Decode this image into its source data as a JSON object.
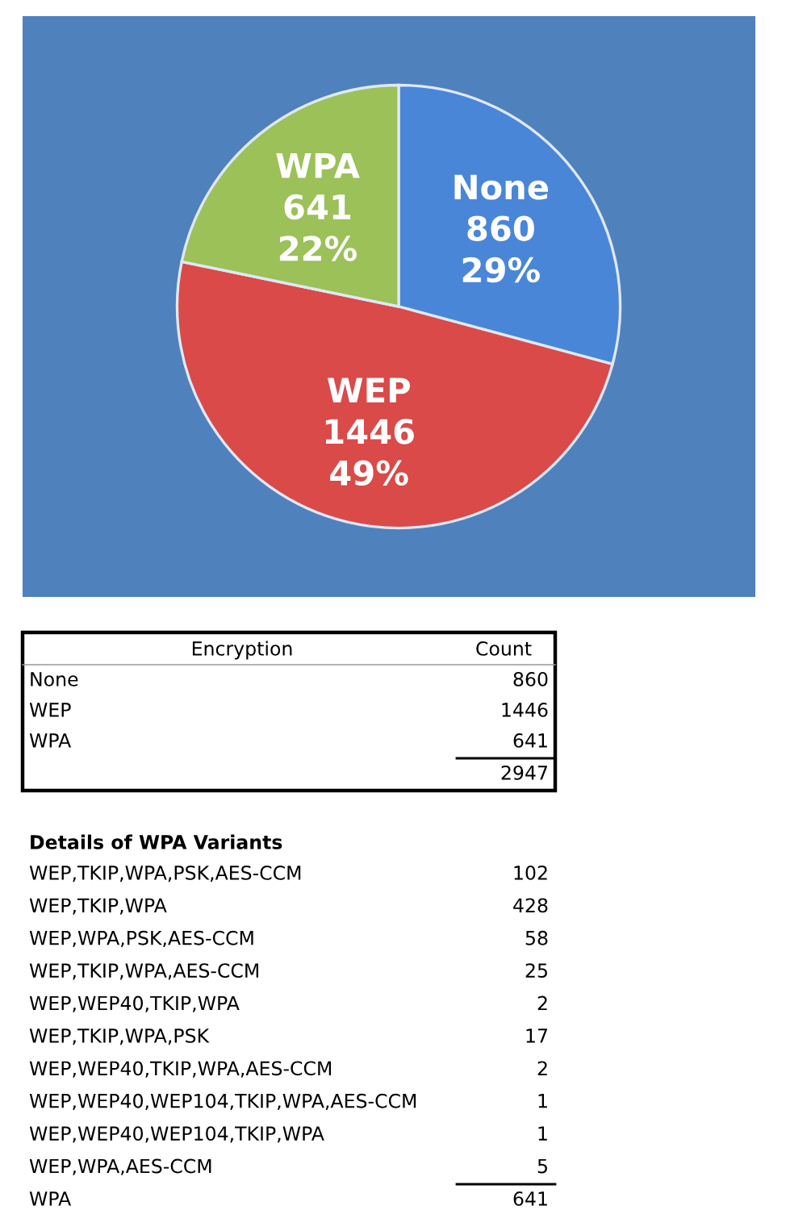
{
  "chart_data": {
    "type": "pie",
    "categories": [
      "None",
      "WEP",
      "WPA"
    ],
    "values": [
      860,
      1446,
      641
    ],
    "colors": [
      "#4a86d8",
      "#d94a48",
      "#9bc158"
    ],
    "value_labels": [
      "860\n29%",
      "1446\n49%",
      "641\n22%"
    ],
    "annotations": [
      "Encryption",
      "Count",
      "None",
      "860",
      "WEP",
      "1446",
      "WPA",
      "641",
      "2947",
      "Details of WPA Variants",
      "WEP,TKIP,WPA,PSK,AES-CCM",
      "102",
      "WEP,TKIP,WPA",
      "428",
      "WEP,WPA,PSK,AES-CCM",
      "58",
      "WEP,TKIP,WPA,AES-CCM",
      "25",
      "WEP,WEP40,TKIP,WPA",
      "2",
      "WEP,TKIP,WPA,PSK",
      "17",
      "WEP,WEP40,TKIP,WPA,AES-CCM",
      "2",
      "WEP,WEP40,WEP104,TKIP,WPA,AES-CCM",
      "1",
      "WEP,WEP40,WEP104,TKIP,WPA",
      "1",
      "WEP,WPA,AES-CCM",
      "5",
      "WPA",
      "641"
    ]
  }
}
